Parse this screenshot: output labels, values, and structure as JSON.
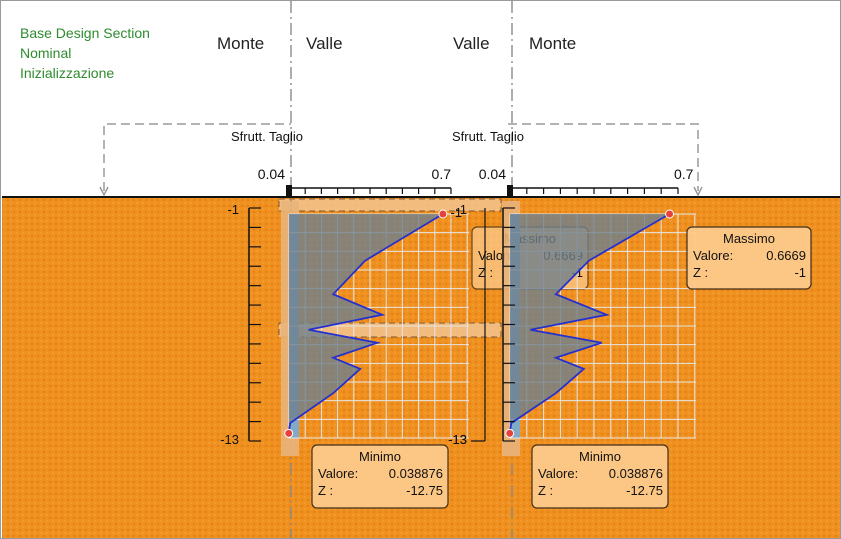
{
  "legend": {
    "line1": "Base Design Section",
    "line2": "Nominal",
    "line3": "Inizializzazione"
  },
  "sides": {
    "left_a": "Monte",
    "left_b": "Valle",
    "right_a": "Valle",
    "right_b": "Monte"
  },
  "colors": {
    "soil": "#f0901e",
    "curve": "#2530d0",
    "fill": "#6e7f8c",
    "wall": "#5ea8e6",
    "label_bg": "#fdca8a",
    "marker": "#e8403a",
    "ok_green": "#2e8b2e"
  },
  "chart_data": [
    {
      "type": "line",
      "title": "Sfrutt. Taglio",
      "xlim": [
        0.04,
        0.7
      ],
      "x_tick_labels": [
        "0.04",
        "0.7"
      ],
      "ylim": [
        -1,
        -13
      ],
      "y_tick_labels": [
        "-1",
        "-13"
      ],
      "series": [
        {
          "x": [
            0.6669,
            0.35,
            0.22,
            0.42,
            0.12,
            0.4,
            0.22,
            0.33,
            0.22,
            0.045,
            0.038876
          ],
          "z": [
            -1,
            -3.5,
            -5.3,
            -6.4,
            -7.2,
            -7.9,
            -8.7,
            -9.3,
            -10.6,
            -12.2,
            -12.75
          ]
        }
      ],
      "max_box": {
        "title": "Massimo",
        "value_label": "Valore:",
        "value": "0.6669",
        "z_label": "Z :",
        "z": "-1"
      },
      "min_box": {
        "title": "Minimo",
        "value_label": "Valore:",
        "value": "0.038876",
        "z_label": "Z :",
        "z": "-12.75"
      }
    },
    {
      "type": "line",
      "title": "Sfrutt. Taglio",
      "xlim": [
        0.04,
        0.7
      ],
      "x_tick_labels": [
        "0.04",
        "0.7"
      ],
      "ylim": [
        -1,
        -13
      ],
      "y_tick_labels": [
        "-1",
        "-13"
      ],
      "series": [
        {
          "x": [
            0.6669,
            0.35,
            0.22,
            0.42,
            0.12,
            0.4,
            0.22,
            0.33,
            0.22,
            0.045,
            0.038876
          ],
          "z": [
            -1,
            -3.5,
            -5.3,
            -6.4,
            -7.2,
            -7.9,
            -8.7,
            -9.3,
            -10.6,
            -12.2,
            -12.75
          ]
        }
      ],
      "max_box": {
        "title": "Massimo",
        "value_label": "Valore:",
        "value": "0.6669",
        "z_label": "Z :",
        "z": "-1"
      },
      "min_box": {
        "title": "Minimo",
        "value_label": "Valore:",
        "value": "0.038876",
        "z_label": "Z :",
        "z": "-12.75"
      }
    }
  ]
}
